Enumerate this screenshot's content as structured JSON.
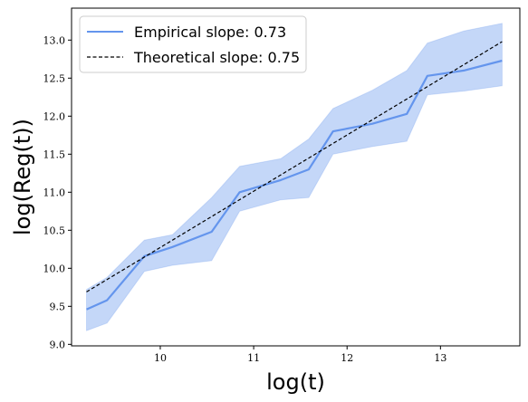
{
  "chart_data": {
    "type": "line",
    "xlabel": "log(t)",
    "ylabel": "log(Reg(t))",
    "xlim": [
      9.05,
      13.85
    ],
    "ylim": [
      8.98,
      13.42
    ],
    "xticks": [
      10,
      11,
      12,
      13
    ],
    "xtick_labels": [
      "10",
      "11",
      "12",
      "13"
    ],
    "yticks": [
      9.0,
      9.5,
      10.0,
      10.5,
      11.0,
      11.5,
      12.0,
      12.5,
      13.0
    ],
    "ytick_labels": [
      "9.0",
      "9.5",
      "10.0",
      "10.5",
      "11.0",
      "11.5",
      "12.0",
      "12.5",
      "13.0"
    ],
    "grid": false,
    "legend_position": "top-left",
    "series": [
      {
        "name": "Empirical slope: 0.73",
        "style": "solid",
        "color": "#6495ed",
        "x": [
          9.21,
          9.43,
          9.83,
          10.13,
          10.55,
          10.85,
          11.29,
          11.59,
          11.85,
          12.27,
          12.64,
          12.86,
          13.25,
          13.66
        ],
        "y": [
          9.46,
          9.58,
          10.16,
          10.28,
          10.48,
          11.0,
          11.16,
          11.3,
          11.8,
          11.9,
          12.03,
          12.53,
          12.6,
          12.73
        ],
        "band_upper": [
          9.72,
          9.88,
          10.37,
          10.44,
          10.93,
          11.34,
          11.44,
          11.7,
          12.1,
          12.34,
          12.6,
          12.96,
          13.12,
          13.22
        ],
        "band_lower": [
          9.18,
          9.28,
          9.96,
          10.04,
          10.1,
          10.75,
          10.9,
          10.93,
          11.5,
          11.6,
          11.67,
          12.28,
          12.33,
          12.4
        ]
      },
      {
        "name": "Theoretical slope: 0.75",
        "style": "dashed",
        "color": "#000000",
        "x": [
          9.21,
          13.66
        ],
        "y": [
          9.69,
          12.98
        ]
      }
    ]
  }
}
